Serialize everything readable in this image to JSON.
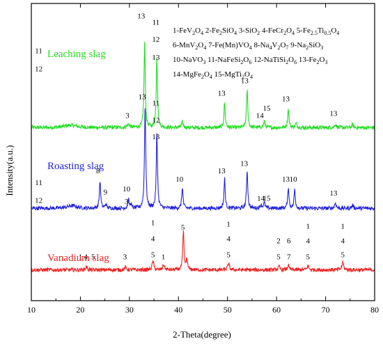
{
  "chart_data": {
    "type": "line",
    "xlabel": "2-Theta(degree)",
    "ylabel": "Intensity(a.u.)",
    "xlim": [
      10,
      80
    ],
    "xticks": [
      10,
      20,
      30,
      40,
      50,
      60,
      70,
      80
    ],
    "y_ticks_shown": false,
    "grid": false,
    "legend_position": "top-right",
    "legend": [
      [
        {
          "num": "1-FeV",
          "sub": "2",
          "num2": "O",
          "sub2": "4"
        }
      ]
    ],
    "legend_lines": [
      [
        {
          "t": "1-FeV"
        },
        {
          "t": "2",
          "s": 1
        },
        {
          "t": "O"
        },
        {
          "t": "4",
          "s": 1
        },
        {
          "t": "  2-Fe"
        },
        {
          "t": "2",
          "s": 1
        },
        {
          "t": "SiO"
        },
        {
          "t": "4",
          "s": 1
        },
        {
          "t": "  3-SiO"
        },
        {
          "t": "2",
          "s": 1
        },
        {
          "t": "  4-FeCr"
        },
        {
          "t": "2",
          "s": 1
        },
        {
          "t": "O"
        },
        {
          "t": "4",
          "s": 1
        },
        {
          "t": "  5-Fe"
        },
        {
          "t": "2.5",
          "s": 1
        },
        {
          "t": "Ti"
        },
        {
          "t": "0.5",
          "s": 1
        },
        {
          "t": "O"
        },
        {
          "t": "4",
          "s": 1
        }
      ],
      [
        {
          "t": "6-MnV"
        },
        {
          "t": "2",
          "s": 1
        },
        {
          "t": "O"
        },
        {
          "t": "4",
          "s": 1
        },
        {
          "t": "  7-Fe(Mn)VO"
        },
        {
          "t": "4",
          "s": 1
        },
        {
          "t": "  8-Na"
        },
        {
          "t": "4",
          "s": 1
        },
        {
          "t": "V"
        },
        {
          "t": "2",
          "s": 1
        },
        {
          "t": "O"
        },
        {
          "t": "7",
          "s": 1
        },
        {
          "t": "  9-Na"
        },
        {
          "t": "2",
          "s": 1
        },
        {
          "t": "SiO"
        },
        {
          "t": "3",
          "s": 1
        }
      ],
      [
        {
          "t": "10-NaVO"
        },
        {
          "t": "3",
          "s": 1
        },
        {
          "t": "  11-NaFeSi"
        },
        {
          "t": "2",
          "s": 1
        },
        {
          "t": "O"
        },
        {
          "t": "6",
          "s": 1
        },
        {
          "t": "  12-NaTiSi"
        },
        {
          "t": "2",
          "s": 1
        },
        {
          "t": "O"
        },
        {
          "t": "6",
          "s": 1
        },
        {
          "t": "  13-Fe"
        },
        {
          "t": "2",
          "s": 1
        },
        {
          "t": "O"
        },
        {
          "t": "3",
          "s": 1
        }
      ],
      [
        {
          "t": "14-MgFe"
        },
        {
          "t": "2",
          "s": 1
        },
        {
          "t": "O"
        },
        {
          "t": "4",
          "s": 1
        },
        {
          "t": "   15-MgTi"
        },
        {
          "t": "2",
          "s": 1
        },
        {
          "t": "O"
        },
        {
          "t": "4",
          "s": 1
        }
      ]
    ],
    "series": [
      {
        "name": "Leaching slag",
        "color": "#22dd22",
        "baseline": 81.5,
        "noise": 0.9,
        "peaks": [
          {
            "x": 18.0,
            "h": 1.2,
            "w": 1.5
          },
          {
            "x": 29.8,
            "h": 1.6,
            "w": 0.3
          },
          {
            "x": 33.1,
            "h": 40,
            "w": 0.15
          },
          {
            "x": 35.6,
            "h": 34,
            "w": 0.15
          },
          {
            "x": 40.8,
            "h": 2.5,
            "w": 0.2
          },
          {
            "x": 49.4,
            "h": 12,
            "w": 0.15
          },
          {
            "x": 54.0,
            "h": 18,
            "w": 0.15
          },
          {
            "x": 57.5,
            "h": 3,
            "w": 0.2
          },
          {
            "x": 62.4,
            "h": 9,
            "w": 0.15
          },
          {
            "x": 64.0,
            "h": 2,
            "w": 0.2
          },
          {
            "x": 72.0,
            "h": 1.6,
            "w": 0.2
          },
          {
            "x": 75.5,
            "h": 1.5,
            "w": 0.2
          }
        ],
        "labels": [
          {
            "x": 11.5,
            "y": 116.5,
            "text": "11"
          },
          {
            "x": 11.5,
            "y": 108,
            "text": "12"
          },
          {
            "x": 29.6,
            "y": 86,
            "text": "3"
          },
          {
            "x": 32.4,
            "y": 133,
            "text": "13"
          },
          {
            "x": 35.4,
            "y": 130,
            "text": "11"
          },
          {
            "x": 35.4,
            "y": 122,
            "text": "12"
          },
          {
            "x": 35.4,
            "y": 113.5,
            "text": "13"
          },
          {
            "x": 48.8,
            "y": 96.5,
            "text": "13"
          },
          {
            "x": 53.5,
            "y": 102.5,
            "text": "13"
          },
          {
            "x": 56.6,
            "y": 86,
            "text": "14"
          },
          {
            "x": 58.0,
            "y": 89.5,
            "text": "15"
          },
          {
            "x": 61.9,
            "y": 94,
            "text": "13"
          },
          {
            "x": 71.6,
            "y": 87,
            "text": "13"
          }
        ]
      },
      {
        "name": "Roasting slag",
        "color": "#2222dd",
        "baseline": 43.5,
        "noise": 0.9,
        "peaks": [
          {
            "x": 18.3,
            "h": 1.2,
            "w": 1.2
          },
          {
            "x": 24.0,
            "h": 13,
            "w": 0.15
          },
          {
            "x": 25.2,
            "h": 2,
            "w": 0.15
          },
          {
            "x": 29.8,
            "h": 4,
            "w": 0.15
          },
          {
            "x": 30.3,
            "h": 2,
            "w": 0.15
          },
          {
            "x": 33.2,
            "h": 49,
            "w": 0.15
          },
          {
            "x": 35.6,
            "h": 36,
            "w": 0.15
          },
          {
            "x": 40.8,
            "h": 10,
            "w": 0.15
          },
          {
            "x": 49.4,
            "h": 14,
            "w": 0.15
          },
          {
            "x": 54.0,
            "h": 18,
            "w": 0.15
          },
          {
            "x": 56.8,
            "h": 1.5,
            "w": 0.2
          },
          {
            "x": 57.5,
            "h": 2.5,
            "w": 0.2
          },
          {
            "x": 62.4,
            "h": 10,
            "w": 0.15
          },
          {
            "x": 63.7,
            "h": 9,
            "w": 0.15
          },
          {
            "x": 72.0,
            "h": 2.5,
            "w": 0.2
          },
          {
            "x": 75.5,
            "h": 1.5,
            "w": 0.2
          }
        ],
        "labels": [
          {
            "x": 11.5,
            "y": 54.5,
            "text": "11"
          },
          {
            "x": 11.5,
            "y": 46,
            "text": "12"
          },
          {
            "x": 23.6,
            "y": 60,
            "text": "8"
          },
          {
            "x": 25.1,
            "y": 50,
            "text": "9"
          },
          {
            "x": 29.4,
            "y": 51.5,
            "text": "10"
          },
          {
            "x": 29.4,
            "y": 45.5,
            "text": "3"
          },
          {
            "x": 32.6,
            "y": 95,
            "text": "13"
          },
          {
            "x": 35.4,
            "y": 92,
            "text": "11"
          },
          {
            "x": 35.4,
            "y": 84,
            "text": "12"
          },
          {
            "x": 35.4,
            "y": 76,
            "text": "13"
          },
          {
            "x": 40.2,
            "y": 56,
            "text": "10"
          },
          {
            "x": 48.8,
            "y": 60,
            "text": "13"
          },
          {
            "x": 53.4,
            "y": 63.5,
            "text": "13"
          },
          {
            "x": 56.8,
            "y": 47,
            "text": "14"
          },
          {
            "x": 58.0,
            "y": 47,
            "text": "15"
          },
          {
            "x": 61.9,
            "y": 56,
            "text": "13"
          },
          {
            "x": 63.4,
            "y": 56,
            "text": "10"
          },
          {
            "x": 71.6,
            "y": 49.5,
            "text": "13"
          }
        ]
      },
      {
        "name": "Vanadium slag",
        "color": "#ee2222",
        "baseline": 14.5,
        "noise": 0.9,
        "peaks": [
          {
            "x": 21.2,
            "h": 1.5,
            "w": 0.2
          },
          {
            "x": 29.2,
            "h": 1.2,
            "w": 0.2
          },
          {
            "x": 34.8,
            "h": 4,
            "w": 0.2
          },
          {
            "x": 37.0,
            "h": 2.5,
            "w": 0.2
          },
          {
            "x": 41.0,
            "h": 18,
            "w": 0.15
          },
          {
            "x": 41.7,
            "h": 5,
            "w": 0.15
          },
          {
            "x": 50.2,
            "h": 3,
            "w": 0.2
          },
          {
            "x": 60.5,
            "h": 1.5,
            "w": 0.2
          },
          {
            "x": 62.4,
            "h": 2,
            "w": 0.2
          },
          {
            "x": 66.4,
            "h": 2,
            "w": 0.2
          },
          {
            "x": 73.5,
            "h": 3.5,
            "w": 0.2
          }
        ],
        "labels": [
          {
            "x": 20.0,
            "y": 19.5,
            "text": "1"
          },
          {
            "x": 21.1,
            "y": 19.5,
            "text": "4"
          },
          {
            "x": 22.6,
            "y": 19.5,
            "text": "5"
          },
          {
            "x": 29.1,
            "y": 19.5,
            "text": "3"
          },
          {
            "x": 34.8,
            "y": 35.5,
            "text": "1"
          },
          {
            "x": 34.8,
            "y": 28,
            "text": "4"
          },
          {
            "x": 34.8,
            "y": 20.5,
            "text": "5"
          },
          {
            "x": 36.9,
            "y": 19.5,
            "text": "1"
          },
          {
            "x": 40.9,
            "y": 33.5,
            "text": "5"
          },
          {
            "x": 50.2,
            "y": 35,
            "text": "1"
          },
          {
            "x": 50.2,
            "y": 28,
            "text": "4"
          },
          {
            "x": 50.2,
            "y": 20.5,
            "text": "5"
          },
          {
            "x": 60.4,
            "y": 27,
            "text": "2"
          },
          {
            "x": 60.4,
            "y": 19.5,
            "text": "5"
          },
          {
            "x": 62.5,
            "y": 27,
            "text": "6"
          },
          {
            "x": 62.5,
            "y": 19.5,
            "text": "7"
          },
          {
            "x": 66.4,
            "y": 34,
            "text": "1"
          },
          {
            "x": 66.4,
            "y": 27,
            "text": "4"
          },
          {
            "x": 66.4,
            "y": 19.5,
            "text": "5"
          },
          {
            "x": 73.5,
            "y": 34,
            "text": "1"
          },
          {
            "x": 73.5,
            "y": 27,
            "text": "4"
          },
          {
            "x": 73.5,
            "y": 20.5,
            "text": "5"
          }
        ]
      }
    ]
  }
}
